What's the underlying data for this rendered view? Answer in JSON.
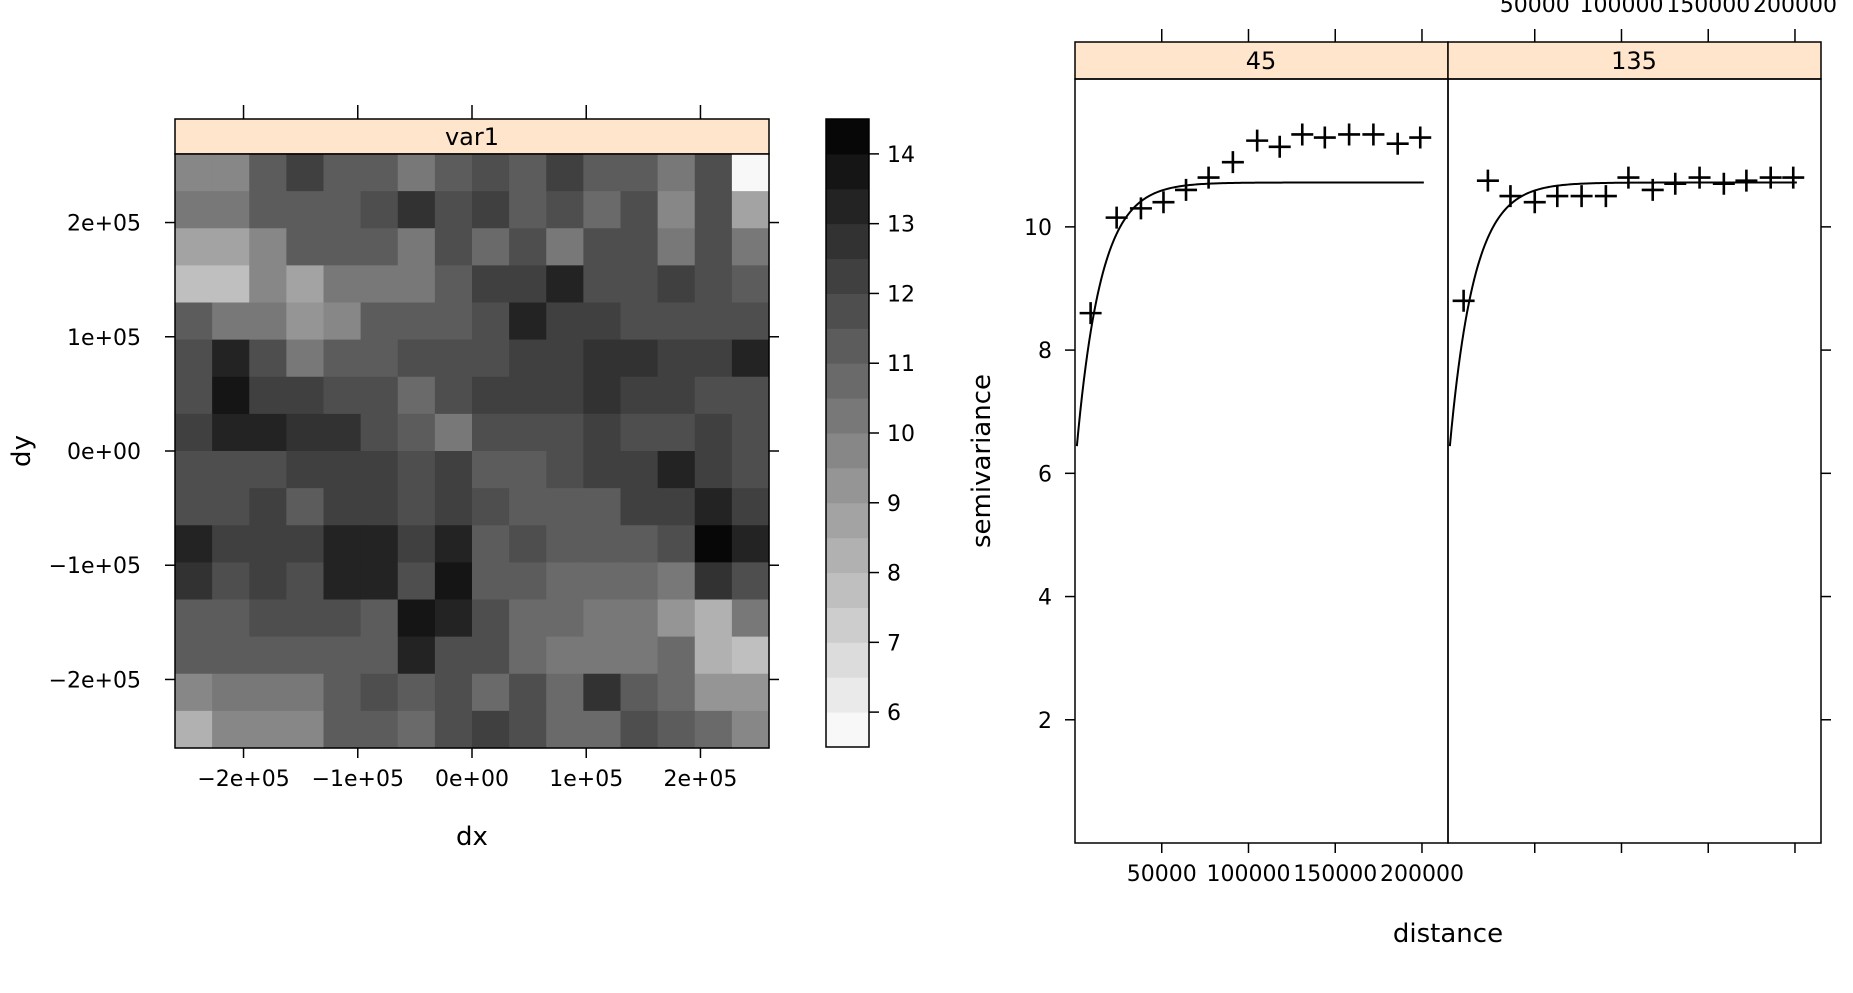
{
  "chart_data": [
    {
      "type": "heatmap",
      "panel_title": "var1",
      "xlabel": "dx",
      "ylabel": "dy",
      "xlim": [
        -260000,
        260000
      ],
      "ylim": [
        -260000,
        260000
      ],
      "x_ticks": [
        -200000,
        -100000,
        0,
        100000,
        200000
      ],
      "x_tick_labels": [
        "−2e+05",
        "−1e+05",
        "0e+00",
        "1e+05",
        "2e+05"
      ],
      "y_ticks": [
        -200000,
        -100000,
        0,
        100000,
        200000
      ],
      "y_tick_labels": [
        "−2e+05",
        "−1e+05",
        "0e+00",
        "1e+05",
        "2e+05"
      ],
      "grid_dims": {
        "rows": 16,
        "cols": 16
      },
      "row_order": "top-to-bottom",
      "values": [
        [
          9.5,
          9.5,
          11.0,
          12.0,
          11.0,
          11.0,
          10.0,
          11.0,
          11.5,
          11.0,
          12.0,
          11.0,
          11.0,
          10.0,
          11.5,
          5.5
        ],
        [
          10.0,
          10.0,
          11.0,
          11.0,
          11.0,
          11.5,
          12.5,
          11.5,
          12.0,
          11.0,
          11.5,
          10.5,
          11.5,
          9.5,
          11.5,
          8.5
        ],
        [
          8.5,
          8.5,
          9.5,
          11.0,
          11.0,
          11.0,
          10.0,
          11.5,
          10.5,
          11.5,
          10.0,
          11.5,
          11.5,
          10.0,
          11.5,
          10.0
        ],
        [
          7.5,
          7.5,
          9.5,
          8.5,
          10.0,
          10.0,
          10.0,
          11.0,
          12.0,
          12.0,
          13.0,
          11.5,
          11.5,
          12.0,
          11.5,
          11.0
        ],
        [
          11.0,
          10.0,
          10.0,
          9.0,
          9.5,
          11.0,
          11.0,
          11.0,
          11.5,
          13.0,
          12.0,
          12.0,
          11.5,
          11.5,
          11.5,
          11.5
        ],
        [
          11.5,
          13.0,
          11.5,
          10.0,
          11.0,
          11.0,
          11.5,
          11.5,
          11.5,
          12.0,
          12.0,
          12.5,
          12.5,
          12.0,
          12.0,
          13.0
        ],
        [
          11.5,
          13.5,
          12.0,
          12.0,
          11.5,
          11.5,
          10.5,
          11.5,
          12.0,
          12.0,
          12.0,
          12.5,
          12.0,
          12.0,
          11.5,
          11.5
        ],
        [
          12.0,
          13.0,
          13.0,
          12.5,
          12.5,
          11.5,
          11.0,
          10.0,
          11.5,
          11.5,
          11.5,
          12.0,
          11.5,
          11.5,
          12.0,
          11.5
        ],
        [
          11.5,
          11.5,
          11.5,
          12.0,
          12.0,
          12.0,
          11.5,
          12.0,
          11.0,
          11.0,
          11.5,
          12.0,
          12.0,
          13.0,
          12.0,
          11.5
        ],
        [
          11.5,
          11.5,
          12.0,
          11.0,
          12.0,
          12.0,
          11.5,
          12.0,
          11.5,
          11.0,
          11.0,
          11.0,
          12.0,
          12.0,
          13.0,
          12.0
        ],
        [
          13.0,
          12.0,
          12.0,
          12.0,
          13.0,
          13.0,
          12.0,
          13.0,
          11.0,
          11.5,
          11.0,
          11.0,
          11.0,
          11.5,
          14.5,
          13.0
        ],
        [
          12.5,
          11.5,
          12.0,
          11.5,
          13.0,
          13.0,
          11.5,
          13.5,
          11.0,
          11.0,
          10.5,
          10.5,
          10.5,
          10.0,
          12.5,
          11.5
        ],
        [
          11.0,
          11.0,
          11.5,
          11.5,
          11.5,
          11.0,
          13.5,
          13.0,
          11.5,
          10.5,
          10.5,
          10.0,
          10.0,
          9.0,
          8.0,
          10.0
        ],
        [
          11.0,
          11.0,
          11.0,
          11.0,
          11.0,
          11.0,
          13.0,
          11.5,
          11.5,
          10.5,
          10.0,
          10.0,
          10.0,
          10.5,
          8.0,
          7.5
        ],
        [
          9.5,
          10.0,
          10.0,
          10.0,
          11.0,
          11.5,
          11.0,
          11.5,
          10.5,
          11.5,
          10.5,
          12.5,
          11.0,
          10.5,
          9.0,
          9.0
        ],
        [
          8.0,
          9.5,
          9.5,
          9.5,
          11.0,
          11.0,
          10.5,
          11.5,
          12.0,
          11.5,
          10.5,
          10.5,
          11.5,
          11.0,
          10.5,
          9.5
        ]
      ],
      "colorbar": {
        "range": [
          5.5,
          14.5
        ],
        "levels": 18,
        "ticks": [
          6,
          7,
          8,
          9,
          10,
          11,
          12,
          13,
          14
        ],
        "colors": [
          "#ffffff",
          "#000000"
        ]
      }
    },
    {
      "type": "scatter",
      "xlabel": "distance",
      "ylabel": "semivariance",
      "xlim": [
        0,
        215000
      ],
      "ylim": [
        0,
        12.4
      ],
      "x_ticks": [
        50000,
        100000,
        150000,
        200000
      ],
      "x_tick_labels": [
        "50000",
        "100000",
        "150000",
        "200000"
      ],
      "y_ticks": [
        2,
        4,
        6,
        8,
        10
      ],
      "y_tick_labels": [
        "2",
        "4",
        "6",
        "8",
        "10"
      ],
      "model": {
        "nugget": 6.1,
        "sill": 10.72,
        "range": 14000,
        "type": "exponential"
      },
      "panels": [
        {
          "name": "45",
          "x": [
            9000,
            24000,
            38000,
            51000,
            64000,
            77000,
            91000,
            105000,
            118000,
            131000,
            144000,
            158000,
            172000,
            186000,
            199000
          ],
          "y": [
            8.6,
            10.15,
            10.3,
            10.4,
            10.6,
            10.8,
            11.05,
            11.4,
            11.3,
            11.5,
            11.45,
            11.5,
            11.5,
            11.35,
            11.45
          ]
        },
        {
          "name": "135",
          "x": [
            9000,
            23000,
            36000,
            50000,
            63000,
            77000,
            91000,
            104000,
            118000,
            131000,
            145000,
            159000,
            172000,
            186000,
            199000
          ],
          "y": [
            8.8,
            10.75,
            10.5,
            10.4,
            10.5,
            10.5,
            10.5,
            10.8,
            10.6,
            10.7,
            10.8,
            10.7,
            10.75,
            10.8,
            10.8
          ]
        }
      ]
    }
  ]
}
